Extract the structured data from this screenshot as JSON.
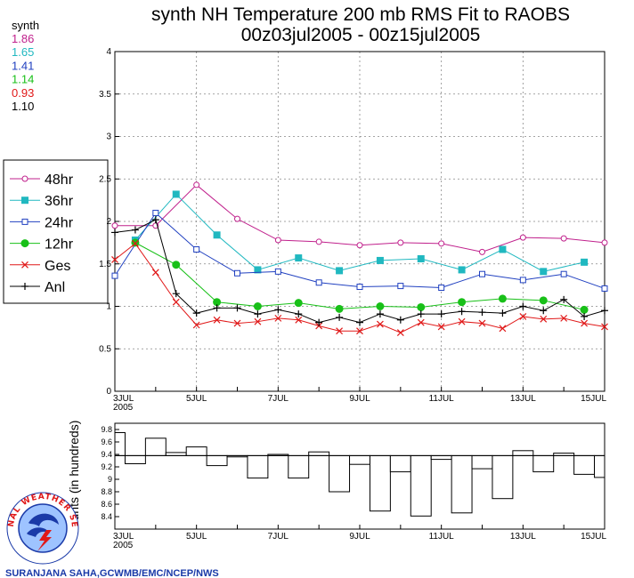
{
  "title": "synth NH Temperature 200 mb RMS Fit to RAOBS",
  "subtitle": "00z03jul2005 - 00z15jul2005",
  "stats": {
    "heading": "synth",
    "values": [
      {
        "text": "1.86",
        "color": "#c0208c"
      },
      {
        "text": "1.65",
        "color": "#20b8c0"
      },
      {
        "text": "1.41",
        "color": "#2040c0"
      },
      {
        "text": "1.14",
        "color": "#18c018"
      },
      {
        "text": "0.93",
        "color": "#e01818"
      },
      {
        "text": "1.10",
        "color": "#000000"
      }
    ]
  },
  "legend": [
    {
      "label": "48hr",
      "color": "#c0208c",
      "marker": "open-circle"
    },
    {
      "label": "36hr",
      "color": "#20b8c0",
      "marker": "filled-square"
    },
    {
      "label": "24hr",
      "color": "#2040c0",
      "marker": "open-square"
    },
    {
      "label": "12hr",
      "color": "#18c018",
      "marker": "filled-circle"
    },
    {
      "label": "Ges",
      "color": "#e01818",
      "marker": "x"
    },
    {
      "label": "Anl",
      "color": "#000000",
      "marker": "plus"
    }
  ],
  "chart_data": [
    {
      "type": "line",
      "title": "synth NH Temperature 200 mb RMS Fit to RAOBS",
      "subtitle": "00z03jul2005 - 00z15jul2005",
      "xlim": [
        3,
        15
      ],
      "ylim": [
        0,
        4
      ],
      "yticks": [
        "0",
        "0.5",
        "1",
        "1.5",
        "2",
        "2.5",
        "3",
        "3.5",
        "4"
      ],
      "xticks": [
        {
          "v": 3,
          "label": "3JUL",
          "sub": "2005"
        },
        {
          "v": 5,
          "label": "5JUL"
        },
        {
          "v": 7,
          "label": "7JUL"
        },
        {
          "v": 9,
          "label": "9JUL"
        },
        {
          "v": 11,
          "label": "11JUL"
        },
        {
          "v": 13,
          "label": "13JUL"
        },
        {
          "v": 15,
          "label": "15JUL"
        }
      ],
      "grid": true,
      "series": [
        {
          "name": "48hr",
          "color": "#c0208c",
          "marker": "open-circle",
          "x": [
            3,
            4,
            5,
            6,
            7,
            8,
            9,
            10,
            11,
            12,
            13,
            14,
            15
          ],
          "y": [
            1.95,
            1.95,
            2.43,
            2.03,
            1.78,
            1.76,
            1.72,
            1.75,
            1.74,
            1.64,
            1.81,
            1.8,
            1.75
          ]
        },
        {
          "name": "36hr",
          "color": "#20b8c0",
          "marker": "filled-square",
          "x": [
            3.5,
            4.5,
            5.5,
            6.5,
            7.5,
            8.5,
            9.5,
            10.5,
            11.5,
            12.5,
            13.5,
            14.5
          ],
          "y": [
            1.78,
            2.32,
            1.84,
            1.43,
            1.57,
            1.42,
            1.54,
            1.56,
            1.43,
            1.67,
            1.41,
            1.52
          ]
        },
        {
          "name": "24hr",
          "color": "#2040c0",
          "marker": "open-square",
          "x": [
            3,
            4,
            5,
            6,
            7,
            8,
            9,
            10,
            11,
            12,
            13,
            14,
            15
          ],
          "y": [
            1.36,
            2.1,
            1.67,
            1.39,
            1.41,
            1.28,
            1.23,
            1.24,
            1.22,
            1.38,
            1.31,
            1.38,
            1.21
          ]
        },
        {
          "name": "12hr",
          "color": "#18c018",
          "marker": "filled-circle",
          "x": [
            3.5,
            4.5,
            5.5,
            6.5,
            7.5,
            8.5,
            9.5,
            10.5,
            11.5,
            12.5,
            13.5,
            14.5
          ],
          "y": [
            1.75,
            1.49,
            1.05,
            1.0,
            1.04,
            0.97,
            1.0,
            0.99,
            1.05,
            1.09,
            1.07,
            0.96
          ]
        },
        {
          "name": "Ges",
          "color": "#e01818",
          "marker": "x",
          "x": [
            3,
            3.5,
            4,
            4.5,
            5,
            5.5,
            6,
            6.5,
            7,
            7.5,
            8,
            8.5,
            9,
            9.5,
            10,
            10.5,
            11,
            11.5,
            12,
            12.5,
            13,
            13.5,
            14,
            14.5,
            15
          ],
          "y": [
            1.55,
            1.74,
            1.4,
            1.05,
            0.78,
            0.84,
            0.8,
            0.82,
            0.86,
            0.84,
            0.77,
            0.71,
            0.71,
            0.79,
            0.69,
            0.81,
            0.76,
            0.82,
            0.8,
            0.74,
            0.88,
            0.85,
            0.86,
            0.8,
            0.76
          ]
        },
        {
          "name": "Anl",
          "color": "#000000",
          "marker": "plus",
          "x": [
            3,
            3.5,
            4,
            4.5,
            5,
            5.5,
            6,
            6.5,
            7,
            7.5,
            8,
            8.5,
            9,
            9.5,
            10,
            10.5,
            11,
            11.5,
            12,
            12.5,
            13,
            13.5,
            14,
            14.5,
            15
          ],
          "y": [
            1.87,
            1.9,
            2.02,
            1.15,
            0.92,
            0.98,
            0.98,
            0.91,
            0.96,
            0.91,
            0.81,
            0.87,
            0.81,
            0.91,
            0.84,
            0.91,
            0.91,
            0.94,
            0.93,
            0.92,
            1.0,
            0.95,
            1.08,
            0.88,
            0.95
          ]
        }
      ]
    },
    {
      "type": "bar",
      "ylabel": "Counts (in hundreds)",
      "xlim": [
        3,
        15
      ],
      "ylim": [
        8.2,
        9.9
      ],
      "yticks": [
        "8.4",
        "8.6",
        "8.8",
        "9",
        "9.2",
        "9.4",
        "9.6",
        "9.8"
      ],
      "xticks": [
        {
          "v": 3,
          "label": "3JUL",
          "sub": "2005"
        },
        {
          "v": 5,
          "label": "5JUL"
        },
        {
          "v": 7,
          "label": "7JUL"
        },
        {
          "v": 9,
          "label": "9JUL"
        },
        {
          "v": 11,
          "label": "11JUL"
        },
        {
          "v": 13,
          "label": "13JUL"
        },
        {
          "v": 15,
          "label": "15JUL"
        }
      ],
      "reference": 9.38,
      "values": [
        9.75,
        9.25,
        9.66,
        9.43,
        9.52,
        9.22,
        9.36,
        9.02,
        9.4,
        9.02,
        9.44,
        8.8,
        9.24,
        8.49,
        9.12,
        8.41,
        9.32,
        8.46,
        9.17,
        8.69,
        9.46,
        9.12,
        9.42,
        9.08,
        9.03
      ]
    }
  ],
  "credit": "SURANJANA SAHA,GCWMB/EMC/NCEP/NWS",
  "logo": {
    "icon": "nws-logo-icon",
    "ring_text": "NATIONAL WEATHER SERVICE"
  }
}
